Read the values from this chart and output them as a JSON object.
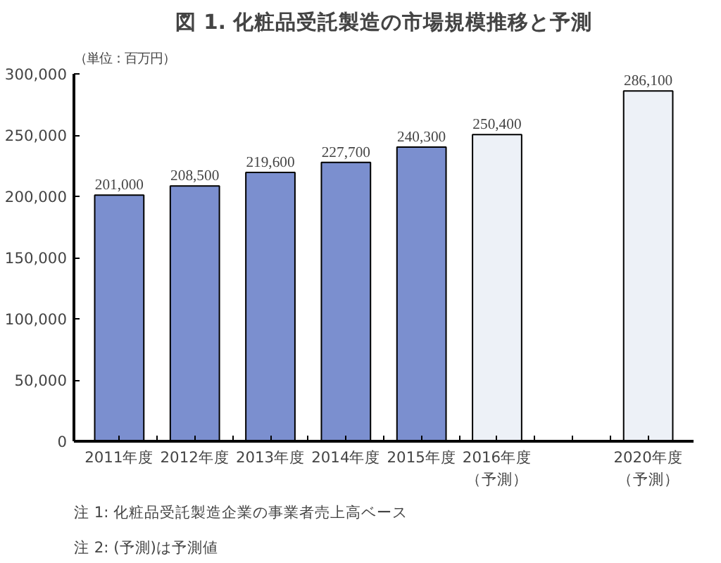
{
  "chart_data": {
    "type": "bar",
    "title": "図 1. 化粧品受託製造の市場規模推移と予測",
    "ylabel": "（単位：百万円）",
    "categories": [
      "2011年度",
      "2012年度",
      "2013年度",
      "2014年度",
      "2015年度",
      "2016年度（予測）",
      null,
      "2020年度（予測）"
    ],
    "values": [
      201000,
      208500,
      219600,
      227700,
      240300,
      250400,
      null,
      286100
    ],
    "colors": [
      "#7b8fcf",
      "#7b8fcf",
      "#7b8fcf",
      "#7b8fcf",
      "#7b8fcf",
      "#edf1f7",
      "#edf1f7",
      "#edf1f7"
    ],
    "value_labels": [
      "201,000",
      "208,500",
      "219,600",
      "227,700",
      "240,300",
      "250,400",
      null,
      "286,100"
    ],
    "ylim": [
      0,
      300000
    ],
    "yticks": [
      {
        "value": 0,
        "label": "0"
      },
      {
        "value": 50000,
        "label": "50,000"
      },
      {
        "value": 100000,
        "label": "100,000"
      },
      {
        "value": 150000,
        "label": "150,000"
      },
      {
        "value": 200000,
        "label": "200,000"
      },
      {
        "value": 250000,
        "label": "250,000"
      },
      {
        "value": 300000,
        "label": "300,000"
      }
    ],
    "grid": false,
    "annotations": [
      "注 1: 化粧品受託製造企業の事業者売上高ベース",
      "注 2: (予測)は予測値"
    ]
  }
}
